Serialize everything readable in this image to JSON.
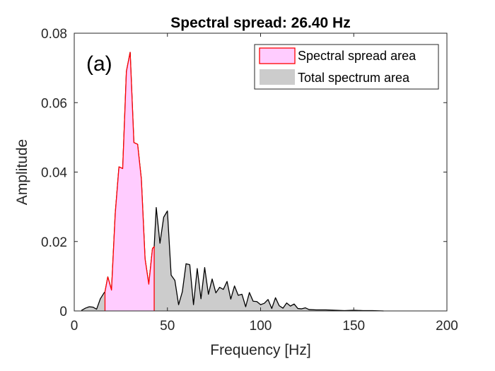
{
  "chart_data": {
    "type": "area",
    "title": "Spectral spread: 26.40 Hz",
    "xlabel": "Frequency [Hz]",
    "ylabel": "Amplitude",
    "xlim": [
      0,
      200
    ],
    "ylim": [
      0,
      0.08
    ],
    "xticks": [
      0,
      50,
      100,
      150,
      200
    ],
    "xtick_labels": [
      "0",
      "50",
      "100",
      "150",
      "200"
    ],
    "yticks": [
      0,
      0.02,
      0.04,
      0.06,
      0.08
    ],
    "ytick_labels": [
      "0",
      "0.02",
      "0.04",
      "0.06",
      "0.08"
    ],
    "grid": false,
    "legend_position": "top-right",
    "annotation": "(a)",
    "series": [
      {
        "name": "Spectral spread area",
        "fill": "#ffccff",
        "stroke": "#ff0000",
        "x": [
          16.5,
          18,
          20,
          22,
          24,
          26,
          28,
          30,
          32,
          34,
          36,
          38,
          40,
          42,
          42.9
        ],
        "y": [
          0.0055,
          0.0098,
          0.006,
          0.028,
          0.0415,
          0.041,
          0.069,
          0.0745,
          0.0485,
          0.048,
          0.038,
          0.015,
          0.0077,
          0.018,
          0.0185
        ]
      },
      {
        "name": "Total spectrum area",
        "fill": "#cccccc",
        "stroke": "#000000",
        "x": [
          4,
          6,
          8,
          10,
          12,
          14,
          16,
          16.5,
          18,
          20,
          22,
          24,
          26,
          28,
          30,
          32,
          34,
          36,
          38,
          40,
          42,
          42.9,
          44,
          46,
          48,
          50,
          52,
          54,
          56,
          58,
          60,
          62,
          64,
          66,
          68,
          70,
          72,
          74,
          76,
          78,
          80,
          82,
          84,
          86,
          88,
          90,
          92,
          94,
          96,
          98,
          100,
          102,
          104,
          106,
          108,
          110,
          112,
          114,
          116,
          118,
          120,
          122,
          124,
          126,
          130,
          135,
          140,
          145,
          150,
          155,
          160,
          166
        ],
        "y": [
          0.0002,
          0.0008,
          0.0012,
          0.0011,
          0.0005,
          0.0035,
          0.0052,
          0.0055,
          0.0098,
          0.006,
          0.028,
          0.0415,
          0.041,
          0.069,
          0.0745,
          0.0485,
          0.048,
          0.038,
          0.015,
          0.0077,
          0.018,
          0.0185,
          0.0298,
          0.0195,
          0.027,
          0.0288,
          0.0103,
          0.0088,
          0.0018,
          0.0055,
          0.0136,
          0.0133,
          0.0018,
          0.0122,
          0.0035,
          0.0125,
          0.0048,
          0.0092,
          0.0052,
          0.0068,
          0.0062,
          0.0085,
          0.0034,
          0.0072,
          0.0045,
          0.0048,
          0.0012,
          0.0053,
          0.0028,
          0.0027,
          0.0018,
          0.0022,
          0.0033,
          0.0007,
          0.0038,
          0.0015,
          0.0008,
          0.0023,
          0.0014,
          0.002,
          0.0007,
          0.0006,
          0.0009,
          0.0004,
          0.0003,
          0.0003,
          0.0002,
          0.0001,
          0.0002,
          0.0001,
          0.0001,
          0.0
        ]
      }
    ]
  }
}
